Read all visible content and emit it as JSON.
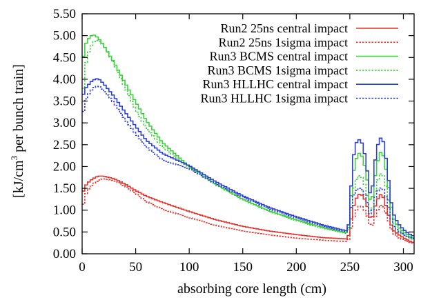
{
  "chart_data": {
    "type": "line",
    "xlabel": "absorbing core length (cm)",
    "ylabel_main": "[kJ/cm",
    "ylabel_sup": "3",
    "ylabel_rest": " per bunch train]",
    "xlim": [
      0,
      310
    ],
    "ylim": [
      0.0,
      5.5
    ],
    "x_ticks": [
      "0",
      "50",
      "100",
      "150",
      "200",
      "250",
      "300"
    ],
    "y_ticks": [
      "0.00",
      "0.50",
      "1.00",
      "1.50",
      "2.00",
      "2.50",
      "3.00",
      "3.50",
      "4.00",
      "4.50",
      "5.00",
      "5.50"
    ],
    "x_tick_values": [
      0,
      50,
      100,
      150,
      200,
      250,
      300
    ],
    "y_tick_values": [
      0,
      0.5,
      1.0,
      1.5,
      2.0,
      2.5,
      3.0,
      3.5,
      4.0,
      4.5,
      5.0,
      5.5
    ],
    "grid": false,
    "legend_position": "top-right",
    "step_size_cm": 2.5,
    "x_breakpoints": [
      0,
      2,
      5,
      10,
      15,
      20,
      30,
      40,
      50,
      60,
      75,
      100,
      125,
      150,
      175,
      200,
      225,
      248,
      250,
      252,
      255,
      258,
      260,
      262,
      265,
      268,
      270,
      272,
      275,
      278,
      280,
      282,
      285,
      288,
      290,
      295,
      300,
      305,
      310
    ],
    "series": [
      {
        "name": "Run2 25ns central impact",
        "color": "#e8312a",
        "dash": "solid",
        "values": [
          1.3,
          1.52,
          1.62,
          1.72,
          1.78,
          1.78,
          1.72,
          1.6,
          1.45,
          1.32,
          1.18,
          0.97,
          0.78,
          0.63,
          0.52,
          0.44,
          0.37,
          0.34,
          0.55,
          0.95,
          1.22,
          1.35,
          1.37,
          1.33,
          1.2,
          0.92,
          0.7,
          0.95,
          1.2,
          1.35,
          1.36,
          1.25,
          1.0,
          0.72,
          0.55,
          0.45,
          0.37,
          0.3,
          0.25
        ]
      },
      {
        "name": "Run2 25ns 1sigma impact",
        "color": "#e8312a",
        "dash": "dotted",
        "values": [
          0.9,
          1.28,
          1.45,
          1.6,
          1.68,
          1.72,
          1.68,
          1.55,
          1.38,
          1.2,
          1.02,
          0.83,
          0.65,
          0.52,
          0.43,
          0.36,
          0.31,
          0.28,
          0.4,
          0.7,
          0.95,
          1.08,
          1.1,
          1.06,
          0.95,
          0.75,
          0.55,
          0.72,
          0.95,
          1.1,
          1.12,
          1.05,
          0.85,
          0.62,
          0.48,
          0.38,
          0.32,
          0.27,
          0.24
        ]
      },
      {
        "name": "Run3 BCMS central impact",
        "color": "#3cd23c",
        "dash": "solid",
        "values": [
          4.2,
          4.72,
          4.9,
          5.03,
          4.95,
          4.78,
          4.38,
          3.92,
          3.48,
          3.05,
          2.55,
          2.0,
          1.6,
          1.25,
          0.98,
          0.78,
          0.6,
          0.48,
          0.8,
          1.65,
          2.1,
          2.3,
          2.3,
          2.2,
          1.9,
          1.4,
          1.0,
          1.5,
          2.0,
          2.32,
          2.33,
          2.2,
          1.75,
          1.2,
          0.85,
          0.62,
          0.5,
          0.42,
          0.35
        ]
      },
      {
        "name": "Run3 BCMS 1sigma impact",
        "color": "#3cd23c",
        "dash": "dotted",
        "values": [
          3.2,
          4.15,
          4.55,
          4.85,
          4.9,
          4.78,
          4.35,
          3.82,
          3.3,
          2.88,
          2.45,
          1.98,
          1.58,
          1.24,
          0.97,
          0.76,
          0.58,
          0.46,
          0.72,
          1.3,
          1.65,
          1.78,
          1.8,
          1.72,
          1.5,
          1.1,
          0.8,
          1.2,
          1.6,
          1.82,
          1.85,
          1.75,
          1.4,
          1.0,
          0.75,
          0.55,
          0.45,
          0.38,
          0.32
        ]
      },
      {
        "name": "Run3 HLLHC central impact",
        "color": "#2a3fd6",
        "dash": "solid",
        "values": [
          3.5,
          3.75,
          3.85,
          3.98,
          4.02,
          3.9,
          3.6,
          3.25,
          2.92,
          2.6,
          2.3,
          2.02,
          1.65,
          1.33,
          1.06,
          0.85,
          0.66,
          0.52,
          0.9,
          1.95,
          2.5,
          2.62,
          2.6,
          2.5,
          2.15,
          1.55,
          1.15,
          1.8,
          2.4,
          2.65,
          2.65,
          2.52,
          1.95,
          1.3,
          0.95,
          0.7,
          0.56,
          0.46,
          0.4
        ]
      },
      {
        "name": "Run3 HLLHC 1sigma impact",
        "color": "#2a3fd6",
        "dash": "dotted",
        "values": [
          2.95,
          3.45,
          3.62,
          3.8,
          3.85,
          3.75,
          3.45,
          3.08,
          2.75,
          2.45,
          2.15,
          1.95,
          1.6,
          1.3,
          1.03,
          0.82,
          0.63,
          0.5,
          0.75,
          1.25,
          1.42,
          1.5,
          1.5,
          1.45,
          1.3,
          1.0,
          0.78,
          1.15,
          1.4,
          1.5,
          1.52,
          1.45,
          1.2,
          0.88,
          0.66,
          0.52,
          0.44,
          0.38,
          0.34
        ]
      }
    ]
  }
}
